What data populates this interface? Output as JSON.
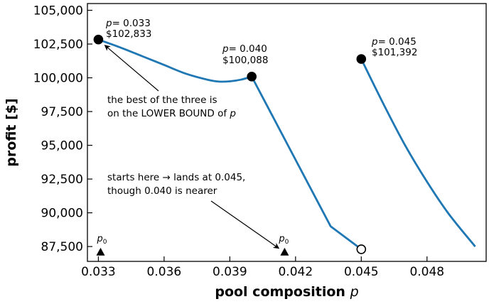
{
  "chart_data": {
    "type": "line",
    "xlabel": "pool composition",
    "xlabel_var": "p",
    "ylabel": "profit [$]",
    "xlim": [
      0.0325,
      0.0507
    ],
    "ylim": [
      86400,
      105500
    ],
    "grid": false,
    "line_color": "#1f77b4",
    "x_ticks": [
      0.033,
      0.036,
      0.039,
      0.042,
      0.045,
      0.048
    ],
    "x_tick_labels": [
      "0.033",
      "0.036",
      "0.039",
      "0.042",
      "0.045",
      "0.048"
    ],
    "y_ticks": [
      87500,
      90000,
      92500,
      95000,
      97500,
      100000,
      102500,
      105000
    ],
    "y_tick_labels": [
      "87,500",
      "90,000",
      "92,500",
      "95,000",
      "97,500",
      "100,000",
      "102,500",
      "105,000"
    ],
    "series": [
      {
        "segment": 1,
        "x": [
          0.033,
          0.034,
          0.035,
          0.036,
          0.037,
          0.038,
          0.0385,
          0.039,
          0.0395,
          0.04
        ],
        "y": [
          102833,
          102250,
          101600,
          100950,
          100300,
          99850,
          99720,
          99740,
          99860,
          100088
        ]
      },
      {
        "segment": 2,
        "x": [
          0.04,
          0.0436,
          0.045
        ],
        "y": [
          100088,
          89000,
          87300
        ]
      },
      {
        "segment": 3,
        "x": [
          0.045,
          0.046,
          0.047,
          0.048,
          0.049,
          0.0502
        ],
        "y": [
          101392,
          98100,
          95000,
          92300,
          89900,
          87500
        ]
      }
    ],
    "points": [
      {
        "name": "best-point",
        "x": 0.033,
        "y": 102833,
        "filled": true,
        "label_p": "= 0.033",
        "label_value": "$102,833"
      },
      {
        "name": "mid-point",
        "x": 0.04,
        "y": 100088,
        "filled": true,
        "label_p": "= 0.040",
        "label_value": "$100,088"
      },
      {
        "name": "right-point",
        "x": 0.045,
        "y": 101392,
        "filled": true,
        "label_p": "= 0.045",
        "label_value": "$101,392"
      },
      {
        "name": "landing-point",
        "x": 0.045,
        "y": 87300,
        "filled": false
      }
    ],
    "start_markers": [
      {
        "x": 0.0331,
        "y": 87100,
        "label": "p",
        "sub": "0"
      },
      {
        "x": 0.0415,
        "y": 87100,
        "label": "p",
        "sub": "0"
      }
    ],
    "annotations": {
      "best_line1": "the best of the three is",
      "best_line2_prefix": "on the LOWER BOUND of ",
      "best_line2_var": "p",
      "start_line1": "starts here  →  lands at 0.045,",
      "start_line2": "though 0.040 is nearer"
    }
  }
}
